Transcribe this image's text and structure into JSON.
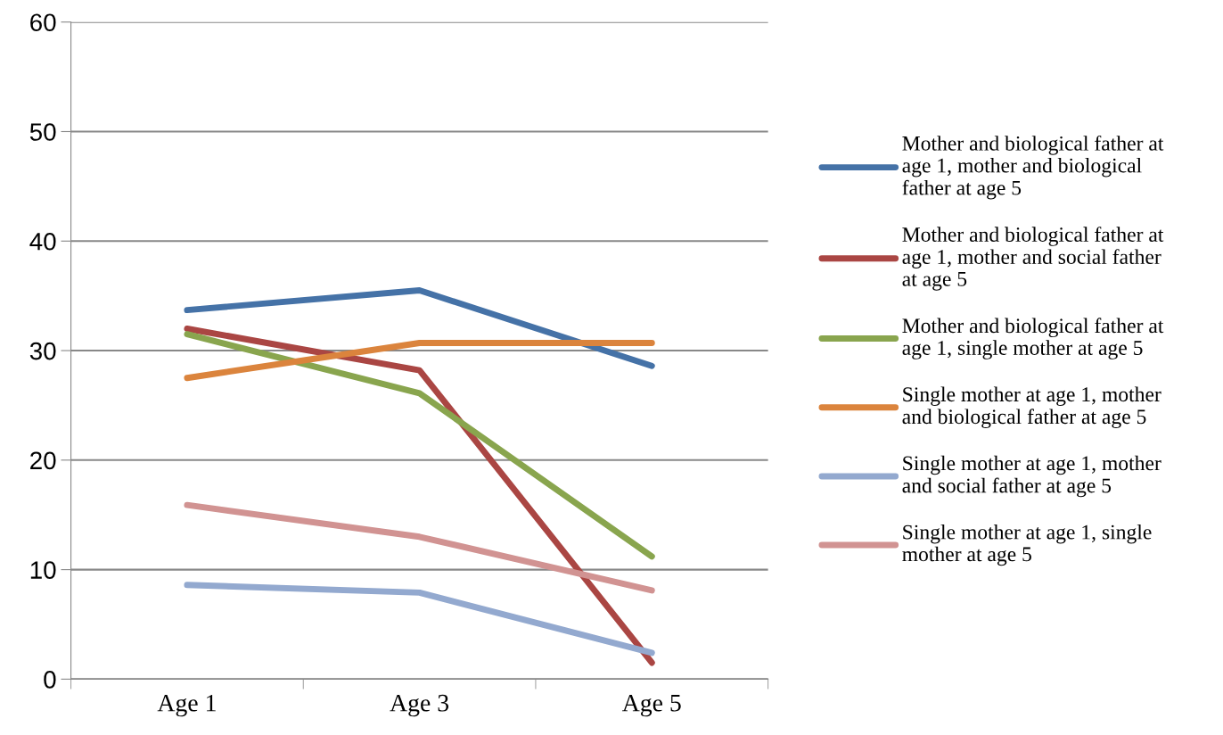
{
  "chart_data": {
    "type": "line",
    "categories": [
      "Age 1",
      "Age 3",
      "Age 5"
    ],
    "series": [
      {
        "name": "Mother and biological father at age 1, mother and biological father at age 5",
        "color": "#4572a7",
        "values": [
          33.7,
          35.5,
          28.6
        ]
      },
      {
        "name": "Mother and biological father at age 1, mother and social father at age 5",
        "color": "#aa4643",
        "values": [
          32.0,
          28.2,
          1.5
        ]
      },
      {
        "name": "Mother and biological father at age 1, single mother at age 5",
        "color": "#89a54e",
        "values": [
          31.5,
          26.1,
          11.2
        ]
      },
      {
        "name": "Single mother at age 1, mother and biological father at age 5",
        "color": "#db843d",
        "values": [
          27.5,
          30.7,
          30.7
        ]
      },
      {
        "name": "Single mother at age 1, mother and social father at age 5",
        "color": "#93a9cf",
        "values": [
          8.6,
          7.9,
          2.4
        ]
      },
      {
        "name": "Single mother at age 1, single mother at age 5",
        "color": "#d19392",
        "values": [
          15.9,
          13.0,
          8.1
        ]
      }
    ],
    "ylim": [
      0,
      60
    ],
    "yticks": [
      0,
      10,
      20,
      30,
      40,
      50,
      60
    ],
    "grid": "y",
    "legend": "right",
    "marker": "none",
    "line_style": "solid"
  }
}
